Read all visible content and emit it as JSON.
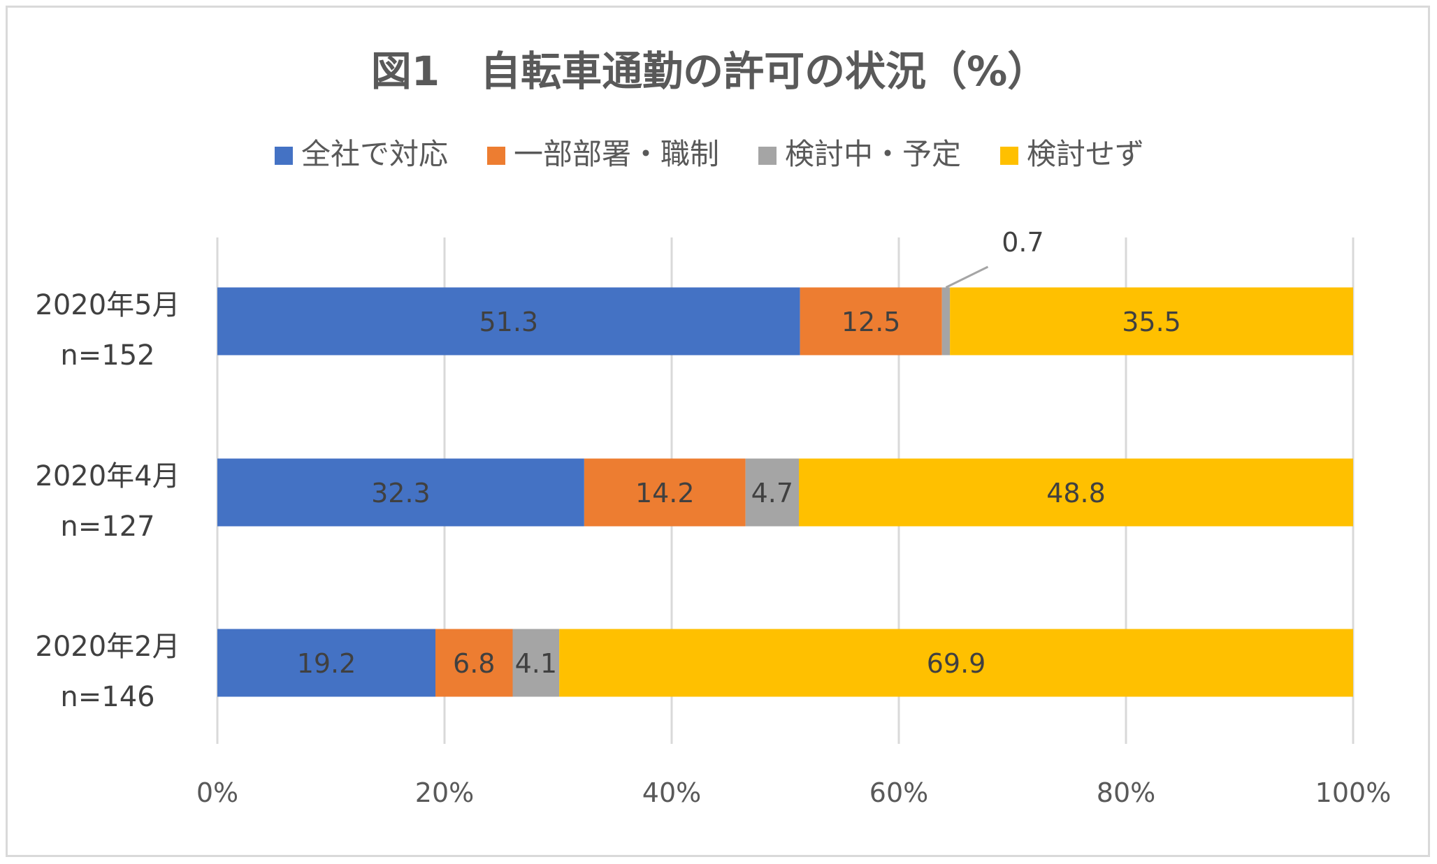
{
  "chart_data": {
    "type": "bar",
    "orientation": "horizontal",
    "stacked": "percent",
    "title": "図1　自転車通勤の許可の状況（%）",
    "categories": [
      {
        "line1": "2020年5月",
        "line2": "n=152"
      },
      {
        "line1": "2020年4月",
        "line2": "n=127"
      },
      {
        "line1": "2020年2月",
        "line2": "n=146"
      }
    ],
    "series": [
      {
        "name": "全社で対応",
        "color": "#4472C4",
        "values": [
          51.3,
          32.3,
          19.2
        ]
      },
      {
        "name": "一部部署・職制",
        "color": "#ED7D31",
        "values": [
          12.5,
          14.2,
          6.8
        ]
      },
      {
        "name": "検討中・予定",
        "color": "#A5A5A5",
        "values": [
          0.7,
          4.7,
          4.1
        ]
      },
      {
        "name": "検討せず",
        "color": "#FFC000",
        "values": [
          35.5,
          48.8,
          69.9
        ]
      }
    ],
    "x_ticks": [
      "0%",
      "20%",
      "40%",
      "60%",
      "80%",
      "100%"
    ],
    "xlim": [
      0,
      100
    ],
    "grid": true,
    "legend_position": "top"
  }
}
